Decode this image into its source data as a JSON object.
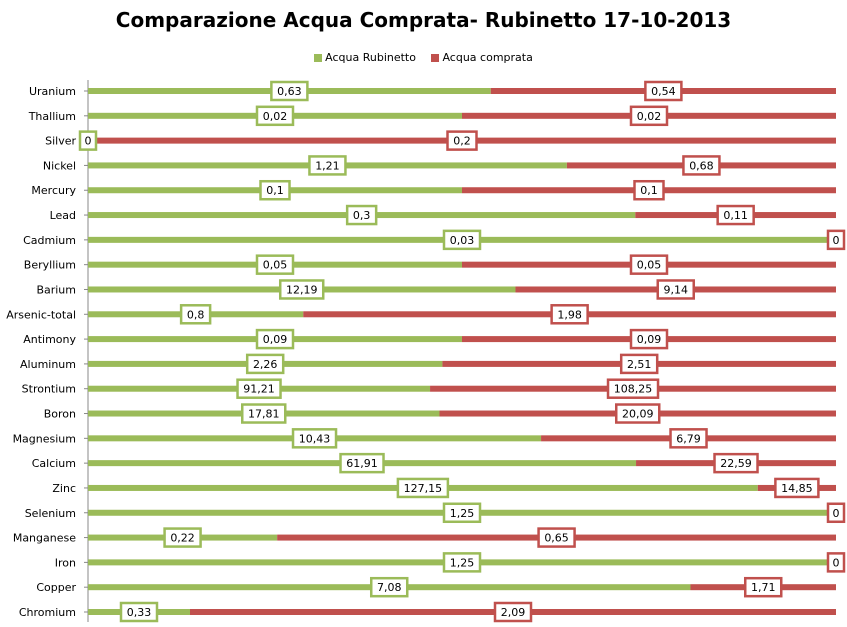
{
  "chart_data": {
    "type": "bar",
    "stacked": "percent",
    "orientation": "horizontal",
    "title": "Comparazione Acqua Comprata- Rubinetto 17-10-2013",
    "legend_position": "top",
    "categories": [
      "Uranium",
      "Thallium",
      "Silver",
      "Nickel",
      "Mercury",
      "Lead",
      "Cadmium",
      "Beryllium",
      "Barium",
      "Arsenic-total",
      "Antimony",
      "Aluminum",
      "Strontium",
      "Boron",
      "Magnesium",
      "Calcium",
      "Zinc",
      "Selenium",
      "Manganese",
      "Iron",
      "Copper",
      "Chromium"
    ],
    "series": [
      {
        "name": "Acqua Rubinetto",
        "color": "#9BBB59",
        "values": [
          0.63,
          0.02,
          0,
          1.21,
          0.1,
          0.3,
          0.03,
          0.05,
          12.19,
          0.8,
          0.09,
          2.26,
          91.21,
          17.81,
          10.43,
          61.91,
          127.15,
          1.25,
          0.22,
          1.25,
          7.08,
          0.33
        ]
      },
      {
        "name": "Acqua comprata",
        "color": "#C0504D",
        "values": [
          0.54,
          0.02,
          0.2,
          0.68,
          0.1,
          0.11,
          0,
          0.05,
          9.14,
          1.98,
          0.09,
          2.51,
          108.25,
          20.09,
          6.79,
          22.59,
          14.85,
          0,
          0.65,
          0,
          1.71,
          2.09
        ]
      }
    ],
    "value_labels": {
      "Acqua Rubinetto": [
        "0,63",
        "0,02",
        "0",
        "1,21",
        "0,1",
        "0,3",
        "0,03",
        "0,05",
        "12,19",
        "0,8",
        "0,09",
        "2,26",
        "91,21",
        "17,81",
        "10,43",
        "61,91",
        "127,15",
        "1,25",
        "0,22",
        "1,25",
        "7,08",
        "0,33"
      ],
      "Acqua comprata": [
        "0,54",
        "0,02",
        "0,2",
        "0,68",
        "0,1",
        "0,11",
        "0",
        "0,05",
        "9,14",
        "1,98",
        "0,09",
        "2,51",
        "108,25",
        "20,09",
        "6,79",
        "22,59",
        "14,85",
        "0",
        "0,65",
        "0",
        "1,71",
        "2,09"
      ]
    }
  }
}
